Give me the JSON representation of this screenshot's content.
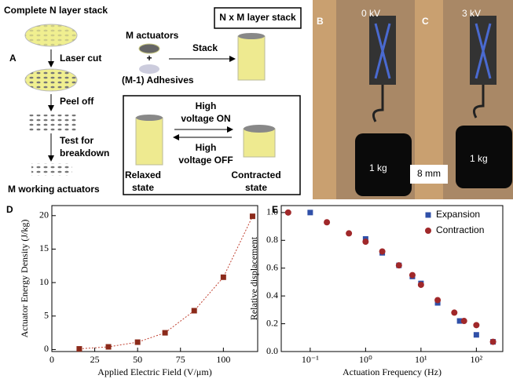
{
  "figure": {
    "a": {
      "label": "A",
      "top": "Complete N layer stack",
      "step1": "Laser cut",
      "step2": "Peel off",
      "step3_line1": "Test for",
      "step3_line2": "breakdown",
      "bottom": "M working actuators"
    },
    "stack": {
      "actuators": "M actuators",
      "plus": "+",
      "adhesives": "(M-1) Adhesives",
      "arrow": "Stack",
      "result": "N x M layer stack"
    },
    "states": {
      "on_line1": "High",
      "on_line2": "voltage ON",
      "off_line1": "High",
      "off_line2": "voltage OFF",
      "relaxed_line1": "Relaxed",
      "relaxed_line2": "state",
      "contracted_line1": "Contracted",
      "contracted_line2": "state"
    },
    "b": {
      "label": "B",
      "voltage": "0 kV",
      "weight": "1 kg"
    },
    "c": {
      "label": "C",
      "voltage": "3 kV",
      "weight": "1 kg",
      "scale": "8 mm"
    }
  },
  "chart_data": [
    {
      "type": "scatter",
      "panel_label": "D",
      "x_label": "Applied Electric Field (V/μm)",
      "y_label": "Actuator Energy Density (J/kg)",
      "xlim": [
        0,
        120
      ],
      "xticks": [
        0,
        25,
        50,
        75,
        100
      ],
      "ylim": [
        -0.3,
        21.5
      ],
      "yticks": [
        0,
        5,
        10,
        15,
        20
      ],
      "fit_line": true,
      "series": [
        {
          "color": "#8b2a1a",
          "marker": "square",
          "x": [
            16,
            33,
            50,
            66,
            83,
            100,
            117
          ],
          "values": [
            0.1,
            0.4,
            1.1,
            2.5,
            5.8,
            10.8,
            19.9
          ]
        }
      ]
    },
    {
      "type": "scatter",
      "panel_label": "E",
      "x_label": "Actuation Frequency (Hz)",
      "y_label": "Relative displacement",
      "log_x": true,
      "xlim": [
        0.03,
        300
      ],
      "xticks": [
        {
          "value": 0.1,
          "label": "10⁻¹"
        },
        {
          "value": 1,
          "label": "10⁰"
        },
        {
          "value": 10,
          "label": "10¹"
        },
        {
          "value": 100,
          "label": "10²"
        }
      ],
      "ylim": [
        0,
        1.05
      ],
      "yticks": [
        {
          "value": 0,
          "label": "0.0"
        },
        0.2,
        0.4,
        0.6,
        0.8,
        {
          "value": 1,
          "label": "1.0"
        }
      ],
      "legend": "upper-right",
      "series": [
        {
          "name": "Expansion",
          "color": "#3050a8",
          "marker": "square",
          "x": [
            0.1,
            1,
            2,
            4,
            7,
            10,
            20,
            50,
            100,
            200
          ],
          "values": [
            1.0,
            0.81,
            0.71,
            0.62,
            0.54,
            0.49,
            0.35,
            0.22,
            0.12,
            0.07
          ]
        },
        {
          "name": "Contraction",
          "color": "#a0282a",
          "marker": "circle",
          "x": [
            0.04,
            0.2,
            0.5,
            1,
            2,
            4,
            7,
            10,
            20,
            40,
            60,
            100,
            200
          ],
          "values": [
            1.0,
            0.93,
            0.85,
            0.79,
            0.72,
            0.62,
            0.55,
            0.48,
            0.37,
            0.28,
            0.22,
            0.19,
            0.07
          ]
        }
      ]
    }
  ]
}
